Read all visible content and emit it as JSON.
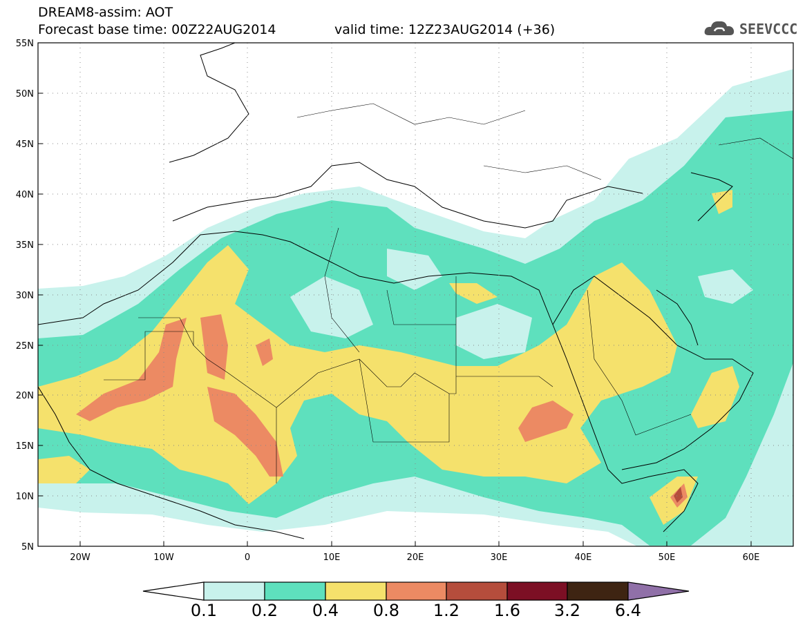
{
  "header": {
    "line1": "DREAM8-assim: AOT",
    "line2_left": "Forecast base time: 00Z22AUG2014",
    "line2_right": "valid time: 12Z23AUG2014 (+36)"
  },
  "logo": {
    "text": "SEEVCCC",
    "icon": "cloud-icon"
  },
  "map": {
    "lon_range": [
      -25,
      65
    ],
    "lat_range": [
      5,
      55
    ],
    "lat_ticks": [
      "55N",
      "50N",
      "45N",
      "40N",
      "35N",
      "30N",
      "25N",
      "20N",
      "15N",
      "10N",
      "5N"
    ],
    "lon_ticks": [
      "20W",
      "10W",
      "0",
      "10E",
      "20E",
      "30E",
      "40E",
      "50E",
      "60E"
    ],
    "grid": "dotted"
  },
  "colorbar": {
    "labels": [
      "0.1",
      "0.2",
      "0.4",
      "0.8",
      "1.2",
      "1.6",
      "3.2",
      "6.4"
    ],
    "colors": [
      "#c8f2ec",
      "#5ee0bd",
      "#f5e16c",
      "#ec8a63",
      "#b54d3c",
      "#7c0f24",
      "#3e2412",
      "#9070a8"
    ]
  }
}
